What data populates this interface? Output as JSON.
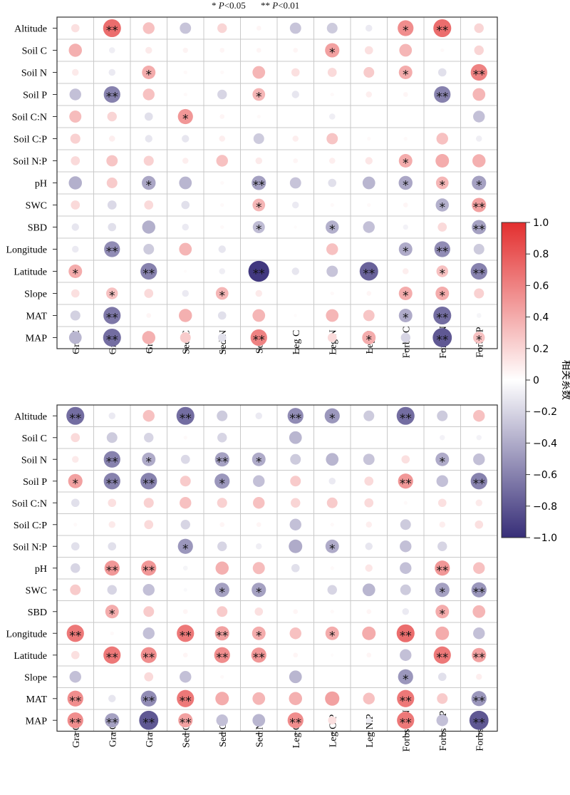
{
  "significance_note": {
    "single_star": "*",
    "single_label": "P",
    "single_value": "<0.05",
    "double_star": "**",
    "double_label": "P",
    "double_value": "<0.01"
  },
  "colorbar": {
    "label": "相关系数",
    "range": [
      -1,
      1
    ],
    "ticks": [
      "1.0",
      "0.8",
      "0.6",
      "0.4",
      "0.2",
      "0",
      "−0.2",
      "−0.4",
      "−0.6",
      "−0.8",
      "−1.0"
    ],
    "colors": {
      "positive": "#e32f2f",
      "zero": "#ffffff",
      "negative": "#372e78"
    }
  },
  "chart_data": [
    {
      "type": "heatmap",
      "rows": [
        "Altitude",
        "Soil C",
        "Soil N",
        "Soil P",
        "Soil C:N",
        "Soil C:P",
        "Soil N:P",
        "pH",
        "SWC",
        "SBD",
        "Longitude",
        "Latitude",
        "Slope",
        "MAT",
        "MAP"
      ],
      "columns": [
        "Gra C",
        "Gra N",
        "Gra P",
        "Sed C",
        "Sed N",
        "Sed P",
        "Leg C",
        "Leg N",
        "Leg P",
        "Forbs C",
        "Forbs N",
        "Forbs P"
      ],
      "values": [
        [
          0.15,
          0.7,
          0.3,
          -0.28,
          0.2,
          0.05,
          -0.28,
          -0.25,
          -0.1,
          0.55,
          0.7,
          0.2
        ],
        [
          0.38,
          -0.08,
          0.1,
          0.06,
          0.05,
          0.05,
          0.05,
          0.45,
          0.15,
          0.35,
          0.03,
          0.2
        ],
        [
          0.1,
          -0.1,
          0.4,
          0.03,
          0.03,
          0.35,
          0.15,
          0.18,
          0.25,
          0.4,
          -0.15,
          0.6
        ],
        [
          -0.3,
          -0.6,
          0.3,
          0.03,
          -0.2,
          0.35,
          -0.12,
          0.03,
          0.08,
          0.05,
          -0.6,
          0.35
        ],
        [
          0.32,
          0.2,
          -0.15,
          0.5,
          0.05,
          0.03,
          0,
          -0.08,
          0,
          0,
          0,
          -0.3
        ],
        [
          0.22,
          0.08,
          -0.12,
          -0.12,
          0.08,
          -0.25,
          0.08,
          0.28,
          0.03,
          0.03,
          0.3,
          -0.08
        ],
        [
          0.18,
          0.28,
          0.22,
          0.08,
          0.3,
          0.1,
          0.05,
          0.08,
          0.12,
          0.4,
          0.4,
          0.38
        ],
        [
          -0.38,
          0.25,
          -0.42,
          -0.35,
          0.03,
          -0.45,
          -0.28,
          -0.15,
          -0.35,
          -0.42,
          0.35,
          -0.45
        ],
        [
          0.18,
          -0.18,
          0.18,
          -0.15,
          0.03,
          0.35,
          -0.1,
          0.03,
          0.03,
          0.05,
          -0.38,
          0.45
        ],
        [
          -0.12,
          -0.15,
          -0.38,
          -0.1,
          0.03,
          -0.32,
          0.02,
          -0.38,
          -0.3,
          -0.06,
          0.18,
          -0.45
        ],
        [
          -0.1,
          -0.55,
          -0.25,
          0.35,
          -0.12,
          0,
          0,
          0.3,
          0,
          -0.4,
          -0.55,
          -0.25
        ],
        [
          0.4,
          0,
          -0.6,
          0.02,
          -0.08,
          -0.95,
          -0.12,
          -0.28,
          -0.75,
          0.08,
          0.3,
          -0.6
        ],
        [
          0.15,
          0.3,
          0.18,
          -0.1,
          0.35,
          0.1,
          0,
          0.03,
          0.05,
          0.4,
          0.4,
          0.22
        ],
        [
          -0.22,
          -0.65,
          0.05,
          0.38,
          -0.15,
          0.35,
          0.02,
          0.35,
          0.28,
          -0.4,
          -0.7,
          -0.05
        ],
        [
          -0.35,
          -0.7,
          0.38,
          0.25,
          -0.15,
          0.6,
          0,
          0.18,
          0.4,
          -0.2,
          -0.8,
          0.3
        ]
      ],
      "significance": [
        [
          "",
          "**",
          "",
          "",
          "",
          "",
          "",
          "",
          "",
          "*",
          "**",
          ""
        ],
        [
          "",
          "",
          "",
          "",
          "",
          "",
          "",
          "*",
          "",
          "",
          "",
          ""
        ],
        [
          "",
          "",
          "*",
          "",
          "",
          "",
          "",
          "",
          "",
          "*",
          "",
          "**"
        ],
        [
          "",
          "**",
          "",
          "",
          "",
          "*",
          "",
          "",
          "",
          "",
          "**",
          ""
        ],
        [
          "",
          "",
          "",
          "*",
          "",
          "",
          "",
          "",
          "",
          "",
          "",
          ""
        ],
        [
          "",
          "",
          "",
          "",
          "",
          "",
          "",
          "",
          "",
          "",
          "",
          ""
        ],
        [
          "",
          "",
          "",
          "",
          "",
          "",
          "",
          "",
          "",
          "*",
          "",
          ""
        ],
        [
          "",
          "",
          "*",
          "",
          "",
          "**",
          "",
          "",
          "",
          "*",
          "*",
          "*"
        ],
        [
          "",
          "",
          "",
          "",
          "",
          "*",
          "",
          "",
          "",
          "",
          "*",
          "**"
        ],
        [
          "",
          "",
          "",
          "",
          "",
          "*",
          "",
          "*",
          "",
          "",
          "",
          "**"
        ],
        [
          "",
          "**",
          "",
          "",
          "",
          "",
          "",
          "",
          "",
          "*",
          "**",
          ""
        ],
        [
          "*",
          "",
          "**",
          "",
          "",
          "**",
          "",
          "",
          "**",
          "",
          "*",
          "**"
        ],
        [
          "",
          "*",
          "",
          "",
          "*",
          "",
          "",
          "",
          "",
          "*",
          "*",
          ""
        ],
        [
          "",
          "**",
          "",
          "",
          "",
          "",
          "",
          "",
          "",
          "*",
          "**",
          ""
        ],
        [
          "",
          "**",
          "",
          "",
          "",
          "**",
          "",
          "",
          "*",
          "",
          "**",
          "*"
        ]
      ]
    },
    {
      "type": "heatmap",
      "rows": [
        "Altitude",
        "Soil C",
        "Soil N",
        "Soil P",
        "Soil C:N",
        "Soil C:P",
        "Soil N:P",
        "pH",
        "SWC",
        "SBD",
        "Longitude",
        "Latitude",
        "Slope",
        "MAT",
        "MAP"
      ],
      "columns": [
        "Gra C:N",
        "Gra C:P",
        "Gra N:P",
        "Sed C:N",
        "Sed C:P",
        "Sed N:P",
        "Leg C:N",
        "Leg C:P",
        "Leg N:P",
        "Forbs C:N",
        "Forbs C:P",
        "Forbs N:P"
      ],
      "values": [
        [
          -0.7,
          -0.1,
          0.3,
          -0.7,
          -0.25,
          -0.1,
          -0.55,
          -0.5,
          -0.25,
          -0.7,
          -0.25,
          0.3
        ],
        [
          0.18,
          -0.25,
          -0.2,
          0.03,
          -0.2,
          0,
          -0.35,
          0,
          0,
          0,
          -0.06,
          -0.06
        ],
        [
          0.1,
          -0.6,
          -0.4,
          -0.18,
          -0.45,
          -0.4,
          -0.25,
          -0.35,
          -0.28,
          0.15,
          -0.4,
          -0.3
        ],
        [
          0.45,
          -0.6,
          -0.6,
          0.25,
          -0.5,
          -0.3,
          0.25,
          -0.1,
          0.18,
          0.5,
          -0.3,
          -0.6
        ],
        [
          -0.15,
          0.15,
          0.22,
          0.3,
          0.22,
          0.3,
          0.2,
          0.25,
          0.18,
          0.03,
          0.15,
          0.1
        ],
        [
          0.03,
          0.1,
          0.18,
          -0.2,
          0.05,
          0.05,
          -0.3,
          0.03,
          0.08,
          -0.25,
          0.08,
          0.15
        ],
        [
          -0.15,
          -0.15,
          0,
          -0.5,
          -0.2,
          -0.08,
          -0.4,
          -0.4,
          -0.12,
          -0.3,
          -0.2,
          0
        ],
        [
          -0.2,
          0.5,
          0.5,
          -0.05,
          0.38,
          0.32,
          -0.15,
          0.03,
          0.12,
          -0.3,
          0.5,
          0.3
        ],
        [
          0.25,
          -0.2,
          -0.3,
          -0.03,
          -0.45,
          -0.45,
          0,
          -0.2,
          -0.35,
          -0.25,
          -0.45,
          -0.5
        ],
        [
          0,
          0.4,
          0.25,
          0.05,
          0.25,
          0.15,
          0.05,
          0.03,
          0.05,
          -0.1,
          0.4,
          0.35
        ],
        [
          0.65,
          0.03,
          -0.3,
          0.65,
          0.45,
          0.4,
          0.3,
          0.4,
          0.4,
          0.7,
          0.4,
          -0.3
        ],
        [
          0.15,
          0.65,
          0.55,
          0.05,
          0.55,
          0.5,
          0.05,
          0.02,
          0.05,
          -0.3,
          0.65,
          0.45
        ],
        [
          -0.3,
          0,
          0.18,
          -0.3,
          0.03,
          0,
          -0.35,
          0,
          0,
          -0.5,
          -0.15,
          0.08
        ],
        [
          0.55,
          -0.12,
          -0.55,
          0.65,
          0.4,
          0.35,
          0.38,
          0.45,
          0.3,
          0.65,
          0.25,
          -0.5
        ],
        [
          0.55,
          -0.45,
          -0.8,
          0.45,
          -0.3,
          -0.35,
          0.55,
          0.15,
          -0.08,
          0.65,
          -0.3,
          -0.8
        ]
      ],
      "significance": [
        [
          "**",
          "",
          "",
          "**",
          "",
          "",
          "**",
          "*",
          "",
          "**",
          "",
          ""
        ],
        [
          "",
          "",
          "",
          "",
          "",
          "",
          "",
          "",
          "",
          "",
          "",
          ""
        ],
        [
          "",
          "**",
          "*",
          "",
          "**",
          "*",
          "",
          "",
          "",
          "",
          "*",
          ""
        ],
        [
          "*",
          "**",
          "**",
          "",
          "*",
          "",
          "",
          "",
          "",
          "**",
          "",
          "**"
        ],
        [
          "",
          "",
          "",
          "",
          "",
          "",
          "",
          "",
          "",
          "",
          "",
          ""
        ],
        [
          "",
          "",
          "",
          "",
          "",
          "",
          "",
          "",
          "",
          "",
          "",
          ""
        ],
        [
          "",
          "",
          "",
          "*",
          "",
          "",
          "",
          "*",
          "",
          "",
          "",
          ""
        ],
        [
          "",
          "**",
          "**",
          "",
          "",
          "",
          "",
          "",
          "",
          "",
          "**",
          ""
        ],
        [
          "",
          "",
          "",
          "",
          "*",
          "*",
          "",
          "",
          "",
          "",
          "*",
          "**"
        ],
        [
          "",
          "*",
          "",
          "",
          "",
          "",
          "",
          "",
          "",
          "",
          "*",
          ""
        ],
        [
          "**",
          "",
          "",
          "**",
          "**",
          "*",
          "",
          "*",
          "",
          "**",
          "",
          ""
        ],
        [
          "",
          "**",
          "**",
          "",
          "**",
          "**",
          "",
          "",
          "",
          "",
          "**",
          "**"
        ],
        [
          "",
          "",
          "",
          "",
          "",
          "",
          "",
          "",
          "",
          "*",
          "",
          ""
        ],
        [
          "**",
          "",
          "**",
          "**",
          "",
          "",
          "",
          "",
          "",
          "**",
          "",
          "**"
        ],
        [
          "**",
          "**",
          "**",
          "**",
          "",
          "",
          "**",
          "",
          "",
          "**",
          "",
          "**"
        ]
      ]
    }
  ]
}
